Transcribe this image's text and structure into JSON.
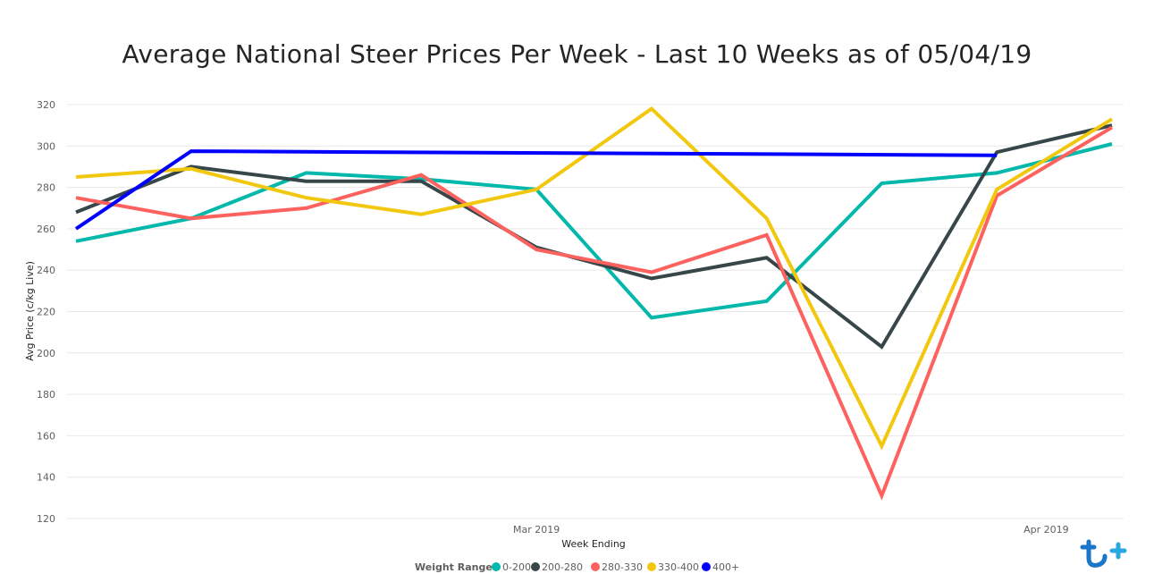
{
  "chart_data": {
    "type": "line",
    "title": "Average National Steer Prices Per Week - Last 10 Weeks as of 05/04/19",
    "xlabel": "Week Ending",
    "ylabel": "Avg Price (c/kg Live)",
    "x": [
      "2019-02-01",
      "2019-02-08",
      "2019-02-15",
      "2019-02-22",
      "2019-03-01",
      "2019-03-08",
      "2019-03-15",
      "2019-03-22",
      "2019-03-29",
      "2019-04-05"
    ],
    "x_tick_labels": [
      {
        "x": "2019-03-01",
        "label": "Mar 2019"
      },
      {
        "x": "2019-04-01",
        "label": "Apr 2019"
      }
    ],
    "ylim": [
      120,
      320
    ],
    "y_ticks": [
      120,
      140,
      160,
      180,
      200,
      220,
      240,
      260,
      280,
      300,
      320
    ],
    "grid": true,
    "legend_title": "Weight Range",
    "legend_position": "bottom-center",
    "series": [
      {
        "name": "0-200",
        "color": "#01B8AA",
        "values": [
          254,
          265,
          287,
          284,
          279,
          217,
          225,
          282,
          287,
          301
        ]
      },
      {
        "name": "200-280",
        "color": "#374649",
        "values": [
          268,
          290,
          283,
          283,
          251,
          236,
          246,
          203,
          297,
          310
        ]
      },
      {
        "name": "280-330",
        "color": "#FD625E",
        "values": [
          275,
          265,
          270,
          286,
          250,
          239,
          257,
          131,
          276,
          309
        ]
      },
      {
        "name": "330-400",
        "color": "#F2C80F",
        "values": [
          285,
          289,
          275,
          267,
          279,
          318,
          265,
          155,
          279,
          313
        ]
      },
      {
        "name": "400+",
        "color": "#0000FF",
        "values": [
          260,
          297.5,
          null,
          null,
          null,
          null,
          null,
          null,
          295.5,
          null
        ]
      }
    ]
  }
}
